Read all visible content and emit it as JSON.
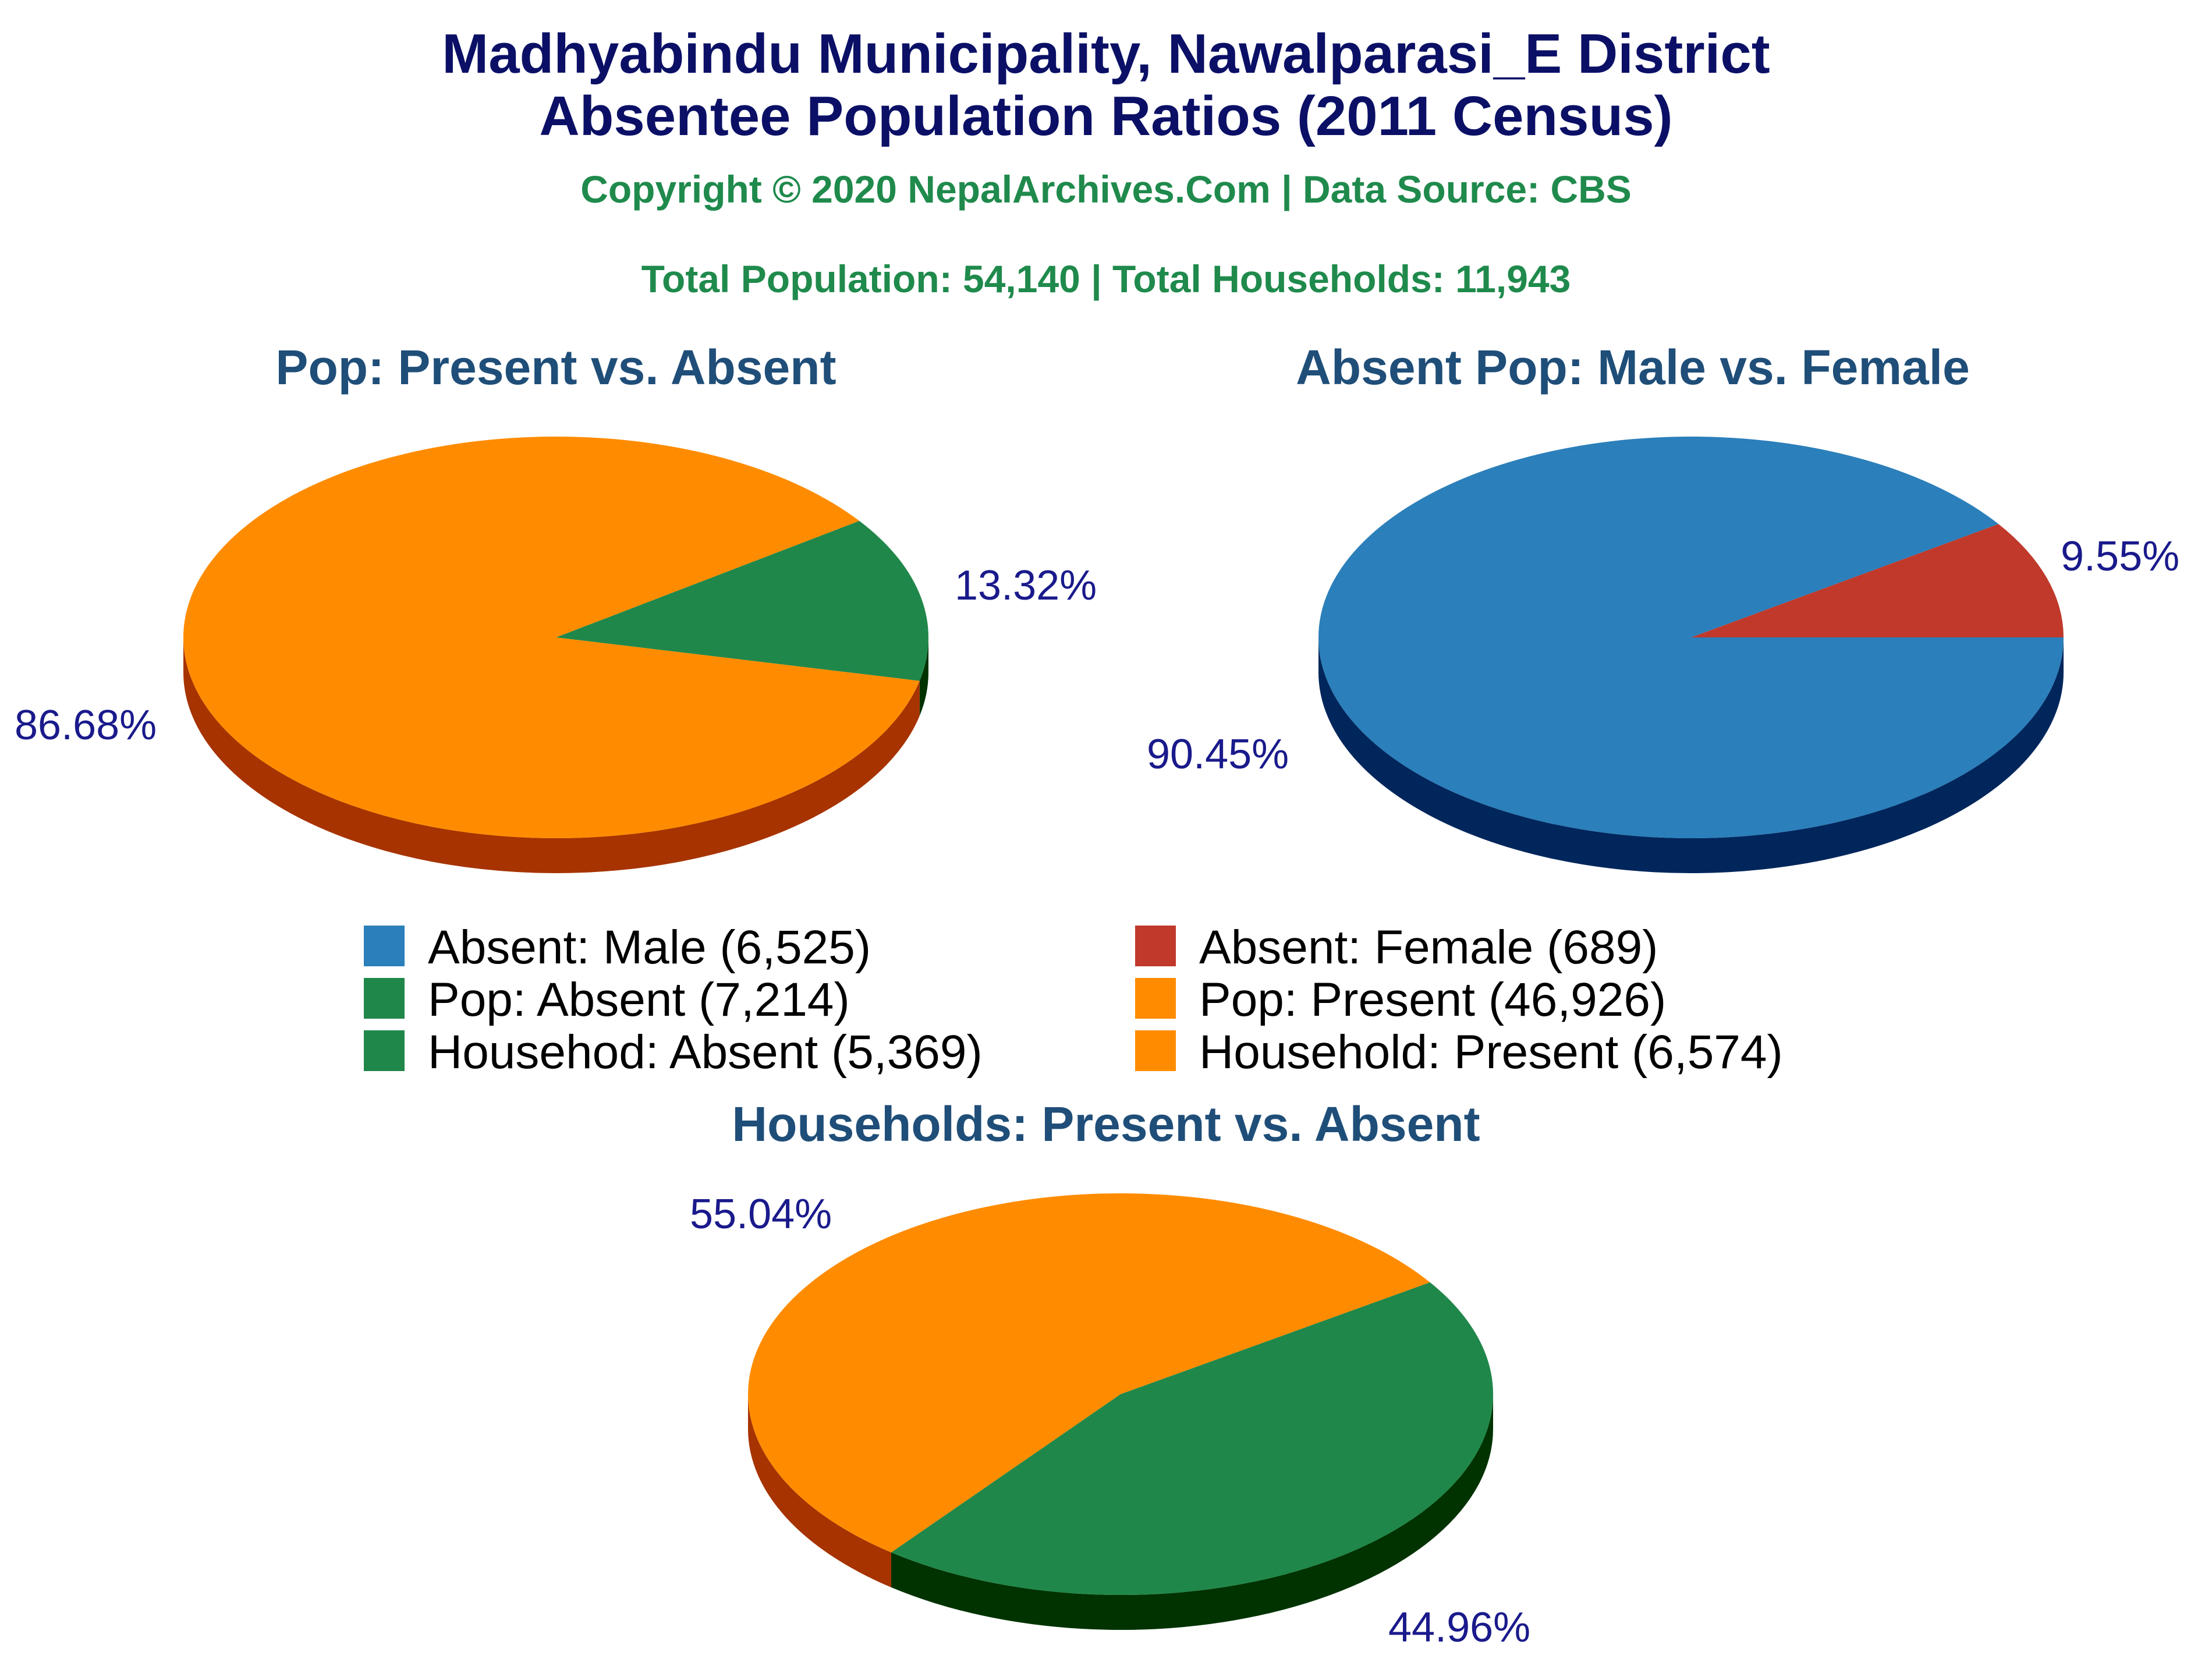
{
  "header": {
    "title_line1": "Madhyabindu Municipality, Nawalparasi_E District",
    "title_line2": "Absentee Population Ratios (2011 Census)",
    "copyright": "Copyright © 2020 NepalArchives.Com | Data Source: CBS",
    "totals": "Total Population: 54,140 | Total Households: 11,943"
  },
  "colors": {
    "orange": "#ff8c00",
    "orange_side": "#a63300",
    "green": "#20874a",
    "green_side": "#003300",
    "blue": "#2b7fba",
    "blue_side": "#00265c",
    "red": "#c0392b"
  },
  "legend": [
    {
      "label": "Absent: Male (6,525)",
      "color": "#2b7fba"
    },
    {
      "label": "Absent: Female (689)",
      "color": "#c0392b"
    },
    {
      "label": "Pop: Absent (7,214)",
      "color": "#20874a"
    },
    {
      "label": "Pop: Present (46,926)",
      "color": "#ff8c00"
    },
    {
      "label": "Househod: Absent (5,369)",
      "color": "#20874a"
    },
    {
      "label": "Household: Present (6,574)",
      "color": "#ff8c00"
    }
  ],
  "chart_data": [
    {
      "type": "pie",
      "title": "Pop: Present vs. Absent",
      "slices": [
        {
          "name": "Pop: Absent",
          "value": 7214,
          "percent_label": "13.32%"
        },
        {
          "name": "Pop: Present",
          "value": 46926,
          "percent_label": "86.68%"
        }
      ]
    },
    {
      "type": "pie",
      "title": "Absent Pop: Male vs. Female",
      "slices": [
        {
          "name": "Absent: Female",
          "value": 689,
          "percent_label": "9.55%"
        },
        {
          "name": "Absent: Male",
          "value": 6525,
          "percent_label": "90.45%"
        }
      ]
    },
    {
      "type": "pie",
      "title": "Households: Present vs. Absent",
      "slices": [
        {
          "name": "Household: Present",
          "value": 6574,
          "percent_label": "55.04%"
        },
        {
          "name": "Househod: Absent",
          "value": 5369,
          "percent_label": "44.96%"
        }
      ]
    }
  ]
}
